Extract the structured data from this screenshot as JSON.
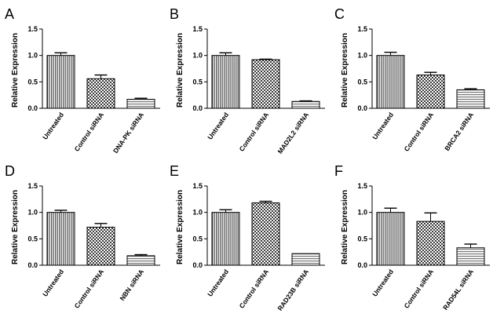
{
  "chart_data": [
    {
      "panel": "A",
      "type": "bar",
      "ylabel": "Relative Expression",
      "ylim": [
        0,
        1.5
      ],
      "yticks": [
        "0.0",
        "0.5",
        "1.0",
        "1.5"
      ],
      "categories": [
        "Untreated",
        "Control siRNA",
        "DNA-PK siRNA"
      ],
      "values": [
        1.0,
        0.56,
        0.17
      ],
      "errors": [
        0.05,
        0.07,
        0.02
      ]
    },
    {
      "panel": "B",
      "type": "bar",
      "ylabel": "Relative Expression",
      "ylim": [
        0,
        1.5
      ],
      "yticks": [
        "0.0",
        "0.5",
        "1.0",
        "1.5"
      ],
      "categories": [
        "Untreated",
        "Control siRNA",
        "MAD2L2 siRNA"
      ],
      "values": [
        1.0,
        0.92,
        0.13
      ],
      "errors": [
        0.05,
        0.01,
        0.01
      ]
    },
    {
      "panel": "C",
      "type": "bar",
      "ylabel": "Relative Expression",
      "ylim": [
        0,
        1.5
      ],
      "yticks": [
        "0.0",
        "0.5",
        "1.0",
        "1.5"
      ],
      "categories": [
        "Untreated",
        "Control siRNA",
        "BRCA2 siRNA"
      ],
      "values": [
        1.0,
        0.63,
        0.35
      ],
      "errors": [
        0.06,
        0.05,
        0.02
      ]
    },
    {
      "panel": "D",
      "type": "bar",
      "ylabel": "Relative Expression",
      "ylim": [
        0,
        1.5
      ],
      "yticks": [
        "0.0",
        "0.5",
        "1.0",
        "1.5"
      ],
      "categories": [
        "Untreated",
        "Control siRNA",
        "NBN siRNA"
      ],
      "values": [
        1.0,
        0.72,
        0.18
      ],
      "errors": [
        0.04,
        0.07,
        0.02
      ]
    },
    {
      "panel": "E",
      "type": "bar",
      "ylabel": "Relative Expression",
      "ylim": [
        0,
        1.5
      ],
      "yticks": [
        "0.0",
        "0.5",
        "1.0",
        "1.5"
      ],
      "categories": [
        "Untreated",
        "Control siRNA",
        "RAD23B siRNA"
      ],
      "values": [
        1.0,
        1.18,
        0.22
      ],
      "errors": [
        0.05,
        0.03,
        0.0
      ]
    },
    {
      "panel": "F",
      "type": "bar",
      "ylabel": "Relative Expression",
      "ylim": [
        0,
        1.5
      ],
      "yticks": [
        "0.0",
        "0.5",
        "1.0",
        "1.5"
      ],
      "categories": [
        "Untreated",
        "Control siRNA",
        "RAD54L siRNA"
      ],
      "values": [
        1.0,
        0.83,
        0.33
      ],
      "errors": [
        0.08,
        0.16,
        0.07
      ]
    }
  ]
}
